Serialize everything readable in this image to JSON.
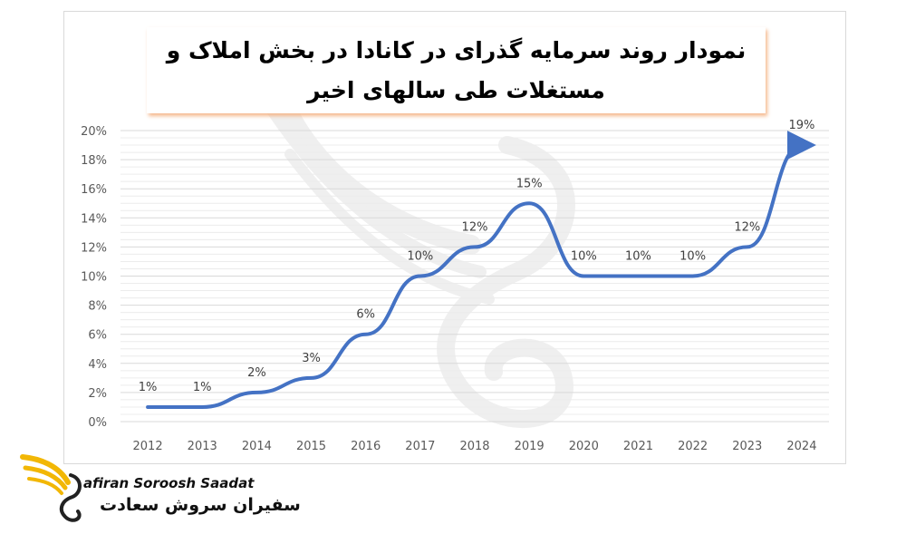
{
  "chart_data": {
    "type": "line",
    "title": "نمودار روند سرمایه گذرای در کانادا در بخش املاک و مستغلات طی سالهای اخیر",
    "xlabel": "",
    "ylabel": "",
    "categories": [
      "2012",
      "2013",
      "2014",
      "2015",
      "2016",
      "2017",
      "2018",
      "2019",
      "2020",
      "2021",
      "2022",
      "2023",
      "2024"
    ],
    "values": [
      1,
      1,
      2,
      3,
      6,
      10,
      12,
      15,
      10,
      10,
      10,
      12,
      19
    ],
    "data_labels": [
      "1%",
      "1%",
      "2%",
      "3%",
      "6%",
      "10%",
      "12%",
      "15%",
      "10%",
      "10%",
      "10%",
      "12%",
      "19%"
    ],
    "y_ticks": [
      "0%",
      "2%",
      "4%",
      "6%",
      "8%",
      "10%",
      "12%",
      "14%",
      "16%",
      "18%",
      "20%"
    ],
    "ylim": [
      0,
      20
    ],
    "grid": true,
    "legend": "none",
    "line_color": "#4472C4",
    "last_point_marker": "arrow"
  },
  "watermark": {
    "type": "logo",
    "icon": "winged-s-logo",
    "color": "#e6e6e6"
  },
  "brand": {
    "logo_icon": "gold-wing-logo",
    "accent": "#F2B705",
    "name_latin": "afiran Soroosh Saadat",
    "name_persian": "سفیران سروش سعادت"
  }
}
